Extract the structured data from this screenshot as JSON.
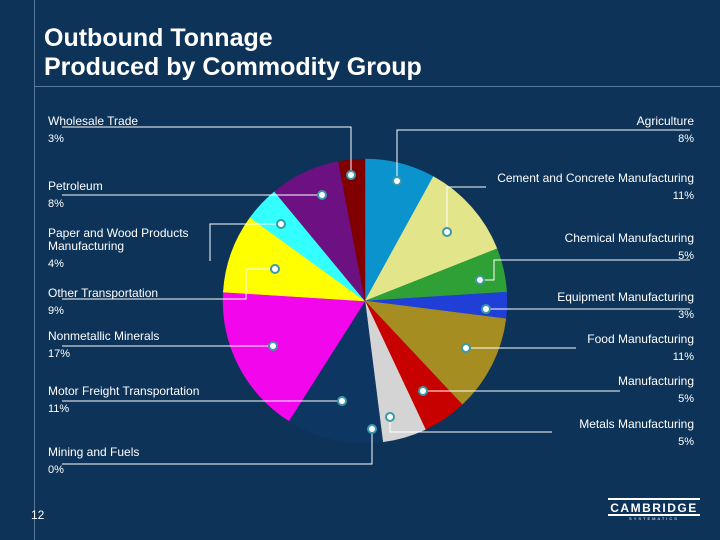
{
  "title_line1": "Outbound Tonnage",
  "title_line2": "Produced by Commodity Group",
  "page_number": "12",
  "logo": {
    "name": "CAMBRIDGE",
    "sub": "SYSTEMATICS"
  },
  "chart_data": {
    "type": "pie",
    "title": "Outbound Tonnage Produced by Commodity Group",
    "slices": [
      {
        "label": "Agriculture",
        "pct_label": "8%",
        "value": 8,
        "color": "#0a93cc"
      },
      {
        "label": "Cement and Concrete Manufacturing",
        "pct_label": "11%",
        "value": 11,
        "color": "#e3e58b"
      },
      {
        "label": "Chemical Manufacturing",
        "pct_label": "5%",
        "value": 5,
        "color": "#2fa036"
      },
      {
        "label": "Equipment Manufacturing",
        "pct_label": "3%",
        "value": 3,
        "color": "#1f3fd6"
      },
      {
        "label": "Food Manufacturing",
        "pct_label": "11%",
        "value": 11,
        "color": "#a68d22"
      },
      {
        "label": "Manufacturing",
        "pct_label": "5%",
        "value": 5,
        "color": "#c70000"
      },
      {
        "label": "Metals Manufacturing",
        "pct_label": "5%",
        "value": 5,
        "color": "#d4d4d4"
      },
      {
        "label": "Mining and Fuels",
        "pct_label": "0%",
        "value": 0,
        "color": "#c0c0c0"
      },
      {
        "label": "Motor Freight Transportation",
        "pct_label": "11%",
        "value": 11,
        "color": "#0d3762"
      },
      {
        "label": "Nonmetallic Minerals",
        "pct_label": "17%",
        "value": 17,
        "color": "#f206ec"
      },
      {
        "label": "Other Transportation",
        "pct_label": "9%",
        "value": 9,
        "color": "#ffff00"
      },
      {
        "label": "Paper and Wood Products Manufacturing",
        "pct_label": "4%",
        "value": 4,
        "color": "#33ffff"
      },
      {
        "label": "Petroleum",
        "pct_label": "8%",
        "value": 8,
        "color": "#6c1082"
      },
      {
        "label": "Wholesale Trade",
        "pct_label": "3%",
        "value": 3,
        "color": "#800000"
      }
    ]
  }
}
